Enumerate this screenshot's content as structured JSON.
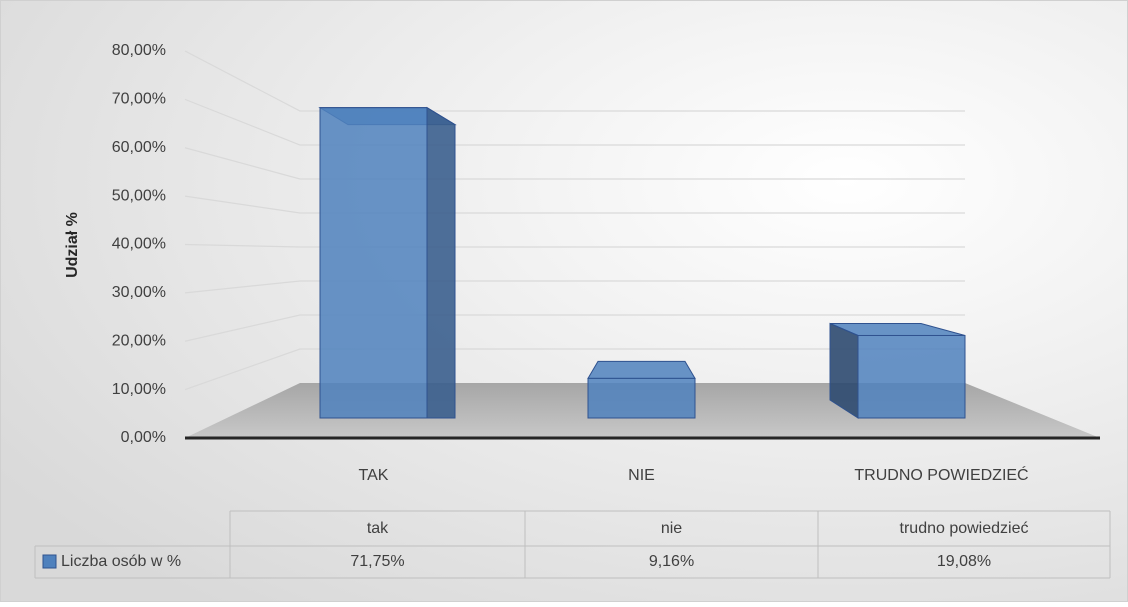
{
  "chart_data": {
    "type": "bar3d",
    "y_label": "Udział %",
    "categories": [
      "TAK",
      "NIE",
      "TRUDNO POWIEDZIEĆ"
    ],
    "table_header": [
      "tak",
      "nie",
      "trudno powiedzieć"
    ],
    "series": [
      {
        "name": "Liczba osób w %",
        "color": "#4f81bd",
        "values": [
          71.75,
          9.16,
          19.08
        ],
        "value_labels": [
          "71,75%",
          "9,16%",
          "19,08%"
        ]
      }
    ],
    "ylim": [
      0,
      80
    ],
    "yticks": [
      {
        "value": 0,
        "label": "0,00%"
      },
      {
        "value": 10,
        "label": "10,00%"
      },
      {
        "value": 20,
        "label": "20,00%"
      },
      {
        "value": 30,
        "label": "30,00%"
      },
      {
        "value": 40,
        "label": "40,00%"
      },
      {
        "value": 50,
        "label": "50,00%"
      },
      {
        "value": 60,
        "label": "60,00%"
      },
      {
        "value": 70,
        "label": "70,00%"
      },
      {
        "value": 80,
        "label": "80,00%"
      }
    ],
    "grid": true
  }
}
